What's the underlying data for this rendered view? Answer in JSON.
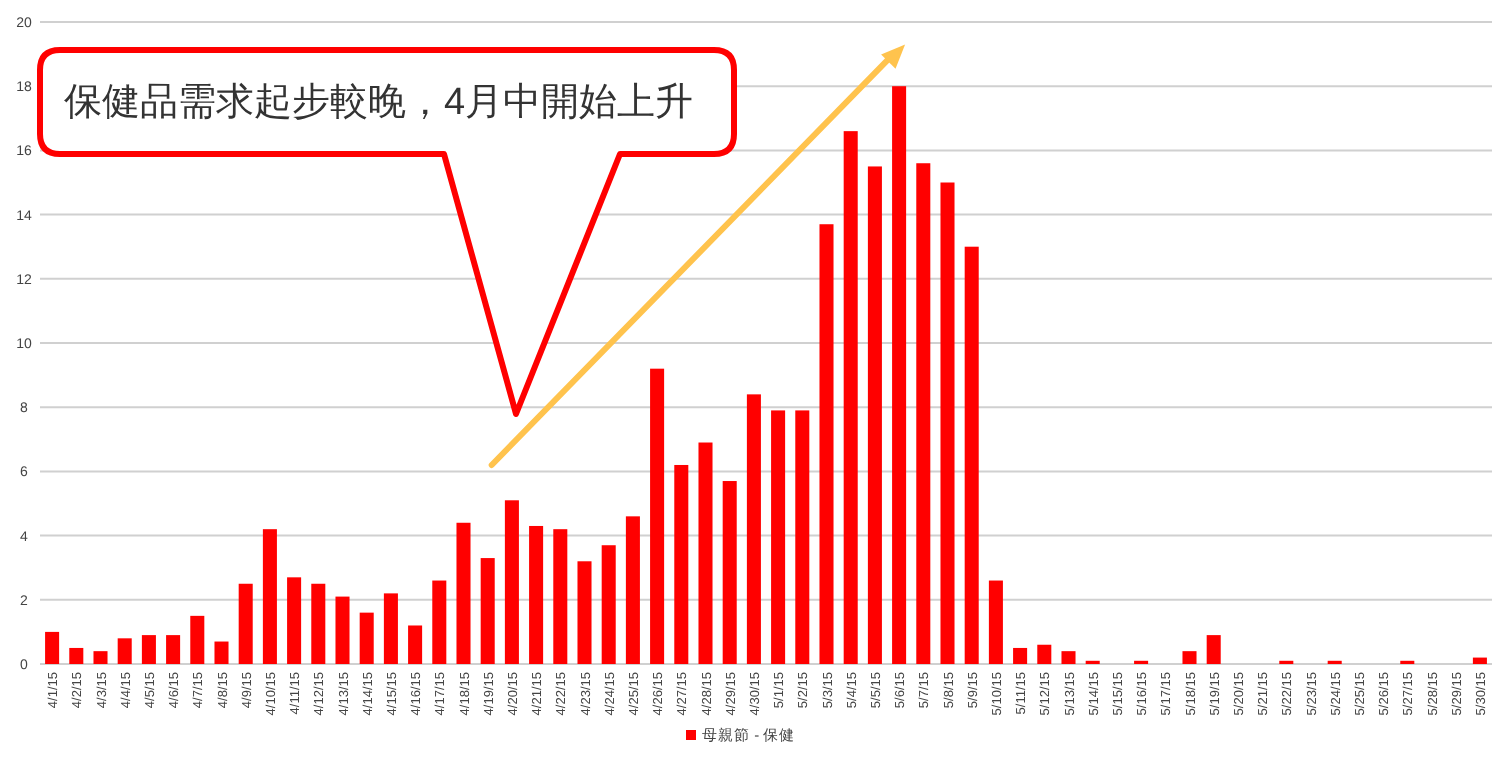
{
  "chart_data": {
    "type": "bar",
    "categories": [
      "4/1/15",
      "4/2/15",
      "4/3/15",
      "4/4/15",
      "4/5/15",
      "4/6/15",
      "4/7/15",
      "4/8/15",
      "4/9/15",
      "4/10/15",
      "4/11/15",
      "4/12/15",
      "4/13/15",
      "4/14/15",
      "4/15/15",
      "4/16/15",
      "4/17/15",
      "4/18/15",
      "4/19/15",
      "4/20/15",
      "4/21/15",
      "4/22/15",
      "4/23/15",
      "4/24/15",
      "4/25/15",
      "4/26/15",
      "4/27/15",
      "4/28/15",
      "4/29/15",
      "4/30/15",
      "5/1/15",
      "5/2/15",
      "5/3/15",
      "5/4/15",
      "5/5/15",
      "5/6/15",
      "5/7/15",
      "5/8/15",
      "5/9/15",
      "5/10/15",
      "5/11/15",
      "5/12/15",
      "5/13/15",
      "5/14/15",
      "5/15/15",
      "5/16/15",
      "5/17/15",
      "5/18/15",
      "5/19/15",
      "5/20/15",
      "5/21/15",
      "5/22/15",
      "5/23/15",
      "5/24/15",
      "5/25/15",
      "5/26/15",
      "5/27/15",
      "5/28/15",
      "5/29/15",
      "5/30/15"
    ],
    "series": [
      {
        "name": "母親節 - 保健",
        "color": "#ff0000",
        "values": [
          1.0,
          0.5,
          0.4,
          0.8,
          0.9,
          0.9,
          1.5,
          0.7,
          2.5,
          4.2,
          2.7,
          2.5,
          2.1,
          1.6,
          2.2,
          1.2,
          2.6,
          4.4,
          3.3,
          5.1,
          4.3,
          4.2,
          3.2,
          3.7,
          4.6,
          9.2,
          6.2,
          6.9,
          5.7,
          8.4,
          7.9,
          7.9,
          13.7,
          16.6,
          15.5,
          18.0,
          15.6,
          15.0,
          13.0,
          2.6,
          0.5,
          0.6,
          0.4,
          0.1,
          0,
          0.1,
          0,
          0.4,
          0.9,
          0,
          0,
          0.1,
          0,
          0.1,
          0,
          0,
          0.1,
          0,
          0,
          0.2
        ]
      }
    ],
    "ylim": [
      0,
      20
    ],
    "yticks": [
      0,
      2,
      4,
      6,
      8,
      10,
      12,
      14,
      16,
      18,
      20
    ],
    "grid": "y",
    "legend": "bottom",
    "annotations": [
      "保健品需求起步較晚，4月中開始上升"
    ]
  }
}
